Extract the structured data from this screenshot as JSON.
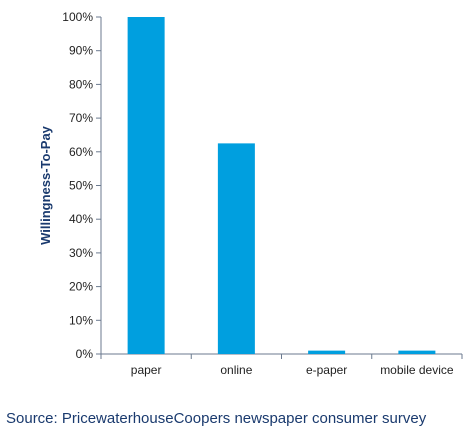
{
  "chart_data": {
    "type": "bar",
    "ylabel": "Willingness-To-Pay",
    "categories": [
      "paper",
      "online",
      "e-paper",
      "mobile device"
    ],
    "values": [
      100,
      62.5,
      1,
      1
    ],
    "ylim": [
      0,
      100
    ],
    "yticks": [
      "0%",
      "10%",
      "20%",
      "30%",
      "40%",
      "50%",
      "60%",
      "70%",
      "80%",
      "90%",
      "100%"
    ],
    "grid": false,
    "bar_color": "#009fdf",
    "axis_color": "#6b7a8f"
  },
  "footer": {
    "source": "Source: PricewaterhouseCoopers newspaper consumer survey"
  }
}
